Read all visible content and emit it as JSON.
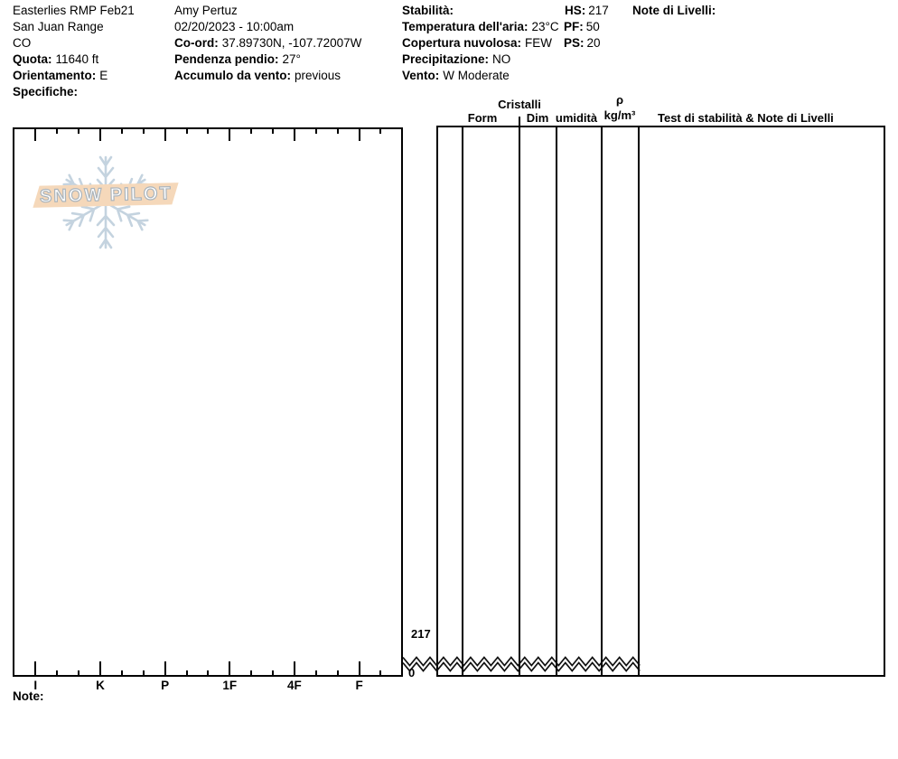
{
  "pit_info": {
    "left": [
      {
        "label": "",
        "value": "Easterlies RMP Feb21"
      },
      {
        "label": "",
        "value": "San Juan Range"
      },
      {
        "label": "",
        "value": "CO"
      },
      {
        "label": "Quota:",
        "value": "11640 ft"
      },
      {
        "label": "Orientamento:",
        "value": "E"
      },
      {
        "label": "Specifiche:",
        "value": ""
      }
    ],
    "middle": [
      {
        "label": "",
        "value": "Amy Pertuz"
      },
      {
        "label": "",
        "value": "02/20/2023 - 10:00am"
      },
      {
        "label": "Co-ord:",
        "value": "37.89730N, -107.72007W"
      },
      {
        "label": "Pendenza pendio:",
        "value": "27°"
      },
      {
        "label": "Accumulo da vento:",
        "value": "previous"
      }
    ],
    "right": [
      {
        "label": "Stabilità:",
        "value": ""
      },
      {
        "label": "Temperatura dell'aria:",
        "value": "23°C"
      },
      {
        "label": "Copertura nuvolosa:",
        "value": "FEW"
      },
      {
        "label": "Precipitazione:",
        "value": "NO"
      },
      {
        "label": "Vento:",
        "value": "W Moderate"
      }
    ],
    "measures": [
      {
        "label": "HS:",
        "value": "217"
      },
      {
        "label": "PF:",
        "value": "50"
      },
      {
        "label": "PS:",
        "value": "20"
      }
    ],
    "level_notes_label": "Note di Livelli:"
  },
  "logo": {
    "text": "SNOW PILOT"
  },
  "chart_data": {
    "type": "snow-profile",
    "title": "",
    "hardness_axis": {
      "categories": [
        "I",
        "K",
        "P",
        "1F",
        "4F",
        "F"
      ],
      "position": "bottom-and-top",
      "minor_ticks_per_interval": 2
    },
    "depth_axis": {
      "surface_label": "217",
      "ground_label": "0",
      "surface_cm": 217,
      "ground_cm": 0,
      "break_symbol": "double-zigzag"
    },
    "columns": {
      "group_label": "Cristalli",
      "form": "Form",
      "dim": "Dim",
      "moisture": "umidità",
      "density_symbol": "ρ",
      "density_unit": "kg/m³",
      "tests": "Test di stabilità & Note di Livelli"
    },
    "layers": [],
    "stability_tests": []
  },
  "footer": {
    "note_label": "Note:"
  }
}
